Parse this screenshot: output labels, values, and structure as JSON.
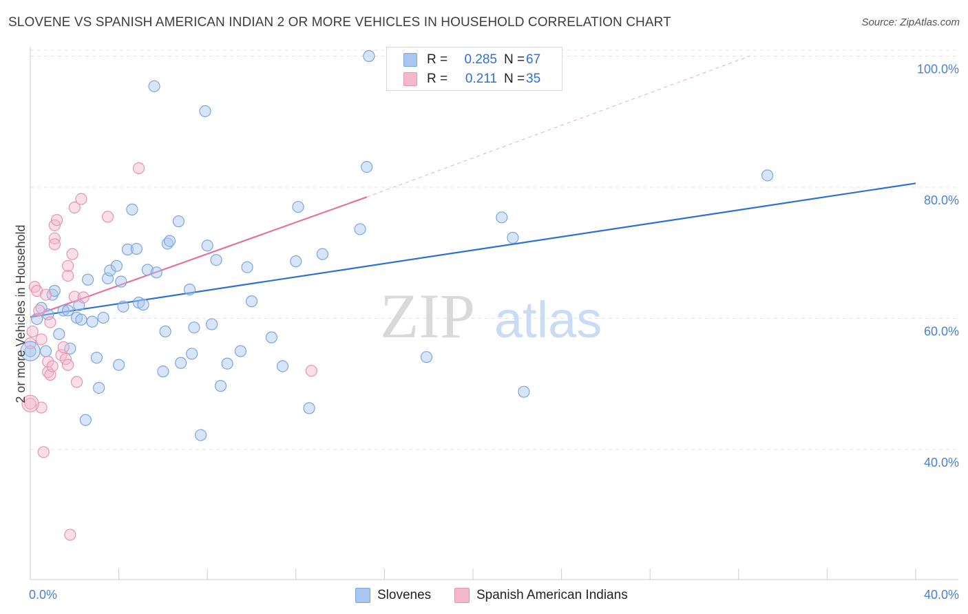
{
  "title": "SLOVENE VS SPANISH AMERICAN INDIAN 2 OR MORE VEHICLES IN HOUSEHOLD CORRELATION CHART",
  "source": "Source: ZipAtlas.com",
  "watermark": {
    "zip": "ZIP",
    "atlas": "atlas"
  },
  "legend": {
    "rows": [
      {
        "r_label": "R =",
        "r_value": "0.285",
        "n_label": "N =",
        "n_value": "67",
        "color": "#a8c6f0"
      },
      {
        "r_label": "R =",
        "r_value": "0.211",
        "n_label": "N =",
        "n_value": "35",
        "color": "#f5b8cb"
      }
    ]
  },
  "bottom_legend": [
    {
      "label": "Slovenes",
      "color": "#a8c6f0"
    },
    {
      "label": "Spanish American Indians",
      "color": "#f5b8cb"
    }
  ],
  "chart_data": {
    "type": "scatter",
    "title": "SLOVENE VS SPANISH AMERICAN INDIAN 2 OR MORE VEHICLES IN HOUSEHOLD CORRELATION CHART",
    "xlabel": "",
    "ylabel": "2 or more Vehicles in Household",
    "xlim": [
      0,
      40
    ],
    "ylim": [
      20,
      102
    ],
    "x_tick_labels": [
      "0.0%",
      "40.0%"
    ],
    "y_ticks": [
      40,
      60,
      80,
      100
    ],
    "y_tick_labels": [
      "40.0%",
      "60.0%",
      "80.0%",
      "100.0%"
    ],
    "series": [
      {
        "name": "Slovenes",
        "color": "#a8c6f0",
        "stroke": "#7aa6e0",
        "trend": {
          "x0": 0,
          "y0": 60.2,
          "x1": 40,
          "y1": 80.6,
          "color": "#2c6fd6"
        },
        "points": [
          [
            0.0,
            55.0
          ],
          [
            0.3,
            59.9
          ],
          [
            0.5,
            61.6
          ],
          [
            0.7,
            55.0
          ],
          [
            0.8,
            60.6
          ],
          [
            1.0,
            63.6
          ],
          [
            1.1,
            64.2
          ],
          [
            1.3,
            57.6
          ],
          [
            1.5,
            61.2
          ],
          [
            1.7,
            61.2
          ],
          [
            1.8,
            55.4
          ],
          [
            2.1,
            60.1
          ],
          [
            2.2,
            62.0
          ],
          [
            2.3,
            59.8
          ],
          [
            2.5,
            44.5
          ],
          [
            2.6,
            65.9
          ],
          [
            2.8,
            59.5
          ],
          [
            3.0,
            54.0
          ],
          [
            3.1,
            49.4
          ],
          [
            3.3,
            60.1
          ],
          [
            3.5,
            66.1
          ],
          [
            3.6,
            67.3
          ],
          [
            3.9,
            68.0
          ],
          [
            4.0,
            52.9
          ],
          [
            4.1,
            65.6
          ],
          [
            4.2,
            61.8
          ],
          [
            4.4,
            70.5
          ],
          [
            4.6,
            76.6
          ],
          [
            4.8,
            70.6
          ],
          [
            4.9,
            62.4
          ],
          [
            5.1,
            62.1
          ],
          [
            5.3,
            67.4
          ],
          [
            5.6,
            95.4
          ],
          [
            5.7,
            67.0
          ],
          [
            6.0,
            51.9
          ],
          [
            6.1,
            58.0
          ],
          [
            6.2,
            71.4
          ],
          [
            6.3,
            71.8
          ],
          [
            6.7,
            74.8
          ],
          [
            6.8,
            53.2
          ],
          [
            7.2,
            64.4
          ],
          [
            7.3,
            54.6
          ],
          [
            7.4,
            58.6
          ],
          [
            7.7,
            42.2
          ],
          [
            7.9,
            91.6
          ],
          [
            8.0,
            71.1
          ],
          [
            8.2,
            59.1
          ],
          [
            8.4,
            68.9
          ],
          [
            8.6,
            49.7
          ],
          [
            8.9,
            53.1
          ],
          [
            9.5,
            55.0
          ],
          [
            9.8,
            67.8
          ],
          [
            10.0,
            62.6
          ],
          [
            10.9,
            57.1
          ],
          [
            11.4,
            52.7
          ],
          [
            12.0,
            68.7
          ],
          [
            12.1,
            77.0
          ],
          [
            12.6,
            46.3
          ],
          [
            13.2,
            69.8
          ],
          [
            14.9,
            73.6
          ],
          [
            15.2,
            83.1
          ],
          [
            15.3,
            100.0
          ],
          [
            17.9,
            54.1
          ],
          [
            21.3,
            75.4
          ],
          [
            21.8,
            72.3
          ],
          [
            22.3,
            48.8
          ],
          [
            33.3,
            81.8
          ]
        ]
      },
      {
        "name": "Spanish American Indians",
        "color": "#f5b8cb",
        "stroke": "#e893ae",
        "trend": {
          "x0": 0,
          "y0": 60.2,
          "x1": 15.2,
          "y1": 78.5,
          "color": "#e4719a",
          "dash_to": {
            "x": 32.5,
            "y": 100.0
          }
        },
        "points": [
          [
            0.0,
            47.0
          ],
          [
            0.0,
            56.2
          ],
          [
            0.1,
            58.0
          ],
          [
            0.2,
            64.8
          ],
          [
            0.3,
            64.2
          ],
          [
            0.4,
            61.2
          ],
          [
            0.5,
            56.8
          ],
          [
            0.5,
            46.4
          ],
          [
            0.6,
            39.6
          ],
          [
            0.7,
            63.6
          ],
          [
            0.8,
            53.4
          ],
          [
            0.8,
            51.8
          ],
          [
            0.9,
            51.4
          ],
          [
            0.9,
            59.4
          ],
          [
            1.0,
            52.7
          ],
          [
            1.1,
            74.2
          ],
          [
            1.1,
            72.2
          ],
          [
            1.1,
            71.3
          ],
          [
            1.2,
            75.0
          ],
          [
            1.4,
            54.4
          ],
          [
            1.5,
            55.6
          ],
          [
            1.6,
            53.8
          ],
          [
            1.7,
            52.9
          ],
          [
            1.7,
            66.5
          ],
          [
            1.7,
            68.0
          ],
          [
            1.8,
            27.0
          ],
          [
            1.9,
            69.8
          ],
          [
            2.0,
            63.3
          ],
          [
            2.0,
            76.9
          ],
          [
            2.1,
            50.3
          ],
          [
            2.3,
            78.2
          ],
          [
            2.4,
            63.2
          ],
          [
            3.5,
            75.5
          ],
          [
            4.9,
            82.9
          ],
          [
            12.7,
            52.0
          ]
        ]
      }
    ]
  }
}
